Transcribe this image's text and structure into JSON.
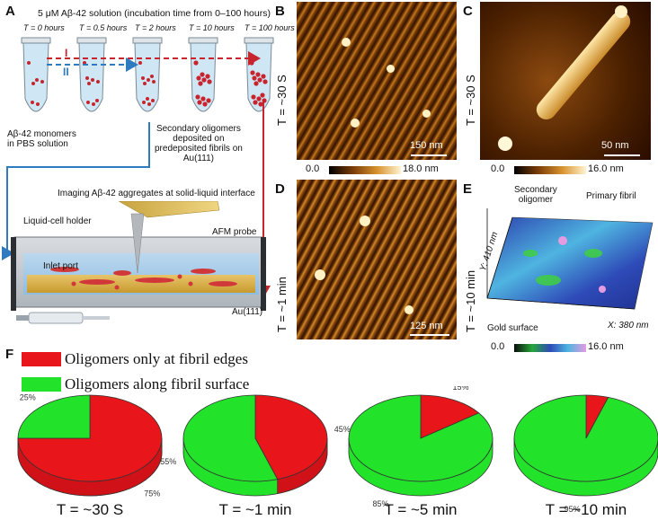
{
  "panelA": {
    "label": "A",
    "header": "5 μM Aβ-42 solution (incubation time from 0–100 hours)",
    "tubes": [
      "T = 0 hours",
      "T = 0.5 hours",
      "T = 2 hours",
      "T = 10 hours",
      "T = 100 hours"
    ],
    "route_red": "I",
    "route_blue": "II",
    "monomers": "Aβ-42 monomers\nin PBS solution",
    "secondary": "Secondary oligomers\ndeposited on\npredeposited fibrils on\nAu(111)",
    "imaging": "Imaging Aβ-42 aggregates at solid-liquid interface",
    "holder": "Liquid-cell holder",
    "probe": "AFM probe",
    "inlet": "Inlet port",
    "au": "Au(111)"
  },
  "panelB": {
    "label": "B",
    "T": "T = ~30 S",
    "scale": "150 nm"
  },
  "panelC": {
    "label": "C",
    "T": "T = ~30 S",
    "scale": "50 nm"
  },
  "panelD": {
    "label": "D",
    "T": "T = ~1 min",
    "scale": "125 nm"
  },
  "panelE": {
    "label": "E",
    "T": "T = ~10 min",
    "secondary": "Secondary\noligomer",
    "primary": "Primary fibril",
    "gold": "Gold surface",
    "y_axis": "Y: 410 nm",
    "x_axis": "X: 380 nm"
  },
  "colorbars": {
    "B": {
      "min": "0.0",
      "max": "18.0 nm"
    },
    "C": {
      "min": "0.0",
      "max": "16.0 nm"
    },
    "E": {
      "min": "0.0",
      "max": "16.0 nm"
    }
  },
  "panelF": {
    "label": "F",
    "legend": [
      {
        "text": "Oligomers only at fibril edges",
        "color": "#e8161b"
      },
      {
        "text": "Oligomers along fibril surface",
        "color": "#22e22a"
      }
    ]
  },
  "chart_data": {
    "type": "pie",
    "categories": [
      "Oligomers only at fibril edges",
      "Oligomers along fibril surface"
    ],
    "charts": [
      {
        "label": "T = ~30 S",
        "values": [
          75,
          25
        ],
        "labels": [
          "75%",
          "25%"
        ]
      },
      {
        "label": "T = ~1 min",
        "values": [
          45,
          55
        ],
        "labels": [
          "45%",
          "55%"
        ]
      },
      {
        "label": "T = ~5 min",
        "values": [
          15,
          85
        ],
        "labels": [
          "15%",
          "85%"
        ]
      },
      {
        "label": "T = ~10 min",
        "values": [
          5,
          95
        ],
        "labels": [
          "5%",
          "95%"
        ]
      }
    ],
    "colors": [
      "#e8161b",
      "#22e22a"
    ]
  }
}
